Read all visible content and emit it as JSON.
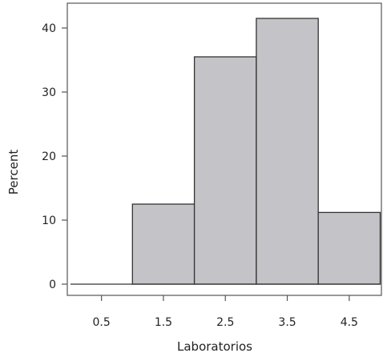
{
  "chart_data": {
    "type": "bar",
    "title": "",
    "xlabel": "Laboratorios",
    "ylabel": "Percent",
    "categories": [
      "0.5",
      "1.5",
      "2.5",
      "3.5",
      "4.5"
    ],
    "x_tick_labels": [
      "0.5",
      "1.5",
      "2.5",
      "3.5",
      "4.5"
    ],
    "values": [
      0,
      12.5,
      35.5,
      41.5,
      11.2
    ],
    "ylim": [
      0,
      44
    ],
    "y_ticks": [
      0,
      10,
      20,
      30,
      40
    ],
    "y_tick_labels": [
      "0",
      "10",
      "20",
      "30",
      "40"
    ],
    "grid": false,
    "colors": {
      "bar_fill": "#c4c4c8",
      "bar_stroke": "#333333",
      "axis": "#555555",
      "background": "#ffffff"
    }
  }
}
